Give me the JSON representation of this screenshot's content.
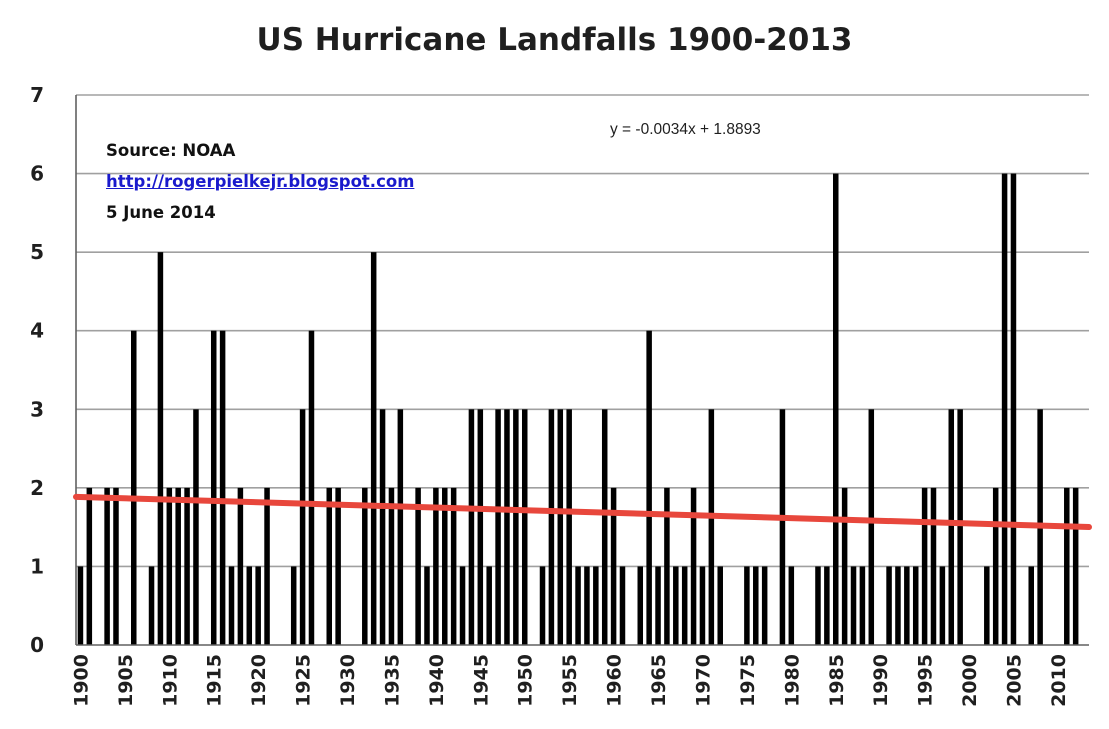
{
  "chart_data": {
    "type": "bar",
    "title": "US Hurricane Landfalls 1900-2013",
    "xlabel": "",
    "ylabel": "",
    "ylim": [
      0,
      7
    ],
    "xlim": [
      1900,
      2013
    ],
    "yticks": [
      "0",
      "1",
      "2",
      "3",
      "4",
      "5",
      "6",
      "7"
    ],
    "xticks": [
      "1900",
      "1905",
      "1910",
      "1915",
      "1920",
      "1925",
      "1930",
      "1935",
      "1940",
      "1945",
      "1950",
      "1955",
      "1960",
      "1965",
      "1970",
      "1975",
      "1980",
      "1985",
      "1990",
      "1995",
      "2000",
      "2005",
      "2010"
    ],
    "grid": true,
    "legend": "none",
    "bar_color": "#000000",
    "trend_color": "#e8473c",
    "categories": [
      1900,
      1901,
      1902,
      1903,
      1904,
      1905,
      1906,
      1907,
      1908,
      1909,
      1910,
      1911,
      1912,
      1913,
      1914,
      1915,
      1916,
      1917,
      1918,
      1919,
      1920,
      1921,
      1922,
      1923,
      1924,
      1925,
      1926,
      1927,
      1928,
      1929,
      1930,
      1931,
      1932,
      1933,
      1934,
      1935,
      1936,
      1937,
      1938,
      1939,
      1940,
      1941,
      1942,
      1943,
      1944,
      1945,
      1946,
      1947,
      1948,
      1949,
      1950,
      1951,
      1952,
      1953,
      1954,
      1955,
      1956,
      1957,
      1958,
      1959,
      1960,
      1961,
      1962,
      1963,
      1964,
      1965,
      1966,
      1967,
      1968,
      1969,
      1970,
      1971,
      1972,
      1973,
      1974,
      1975,
      1976,
      1977,
      1978,
      1979,
      1980,
      1981,
      1982,
      1983,
      1984,
      1985,
      1986,
      1987,
      1988,
      1989,
      1990,
      1991,
      1992,
      1993,
      1994,
      1995,
      1996,
      1997,
      1998,
      1999,
      2000,
      2001,
      2002,
      2003,
      2004,
      2005,
      2006,
      2007,
      2008,
      2009,
      2010,
      2011,
      2012,
      2013
    ],
    "values": [
      1,
      2,
      0,
      2,
      2,
      0,
      4,
      0,
      1,
      5,
      2,
      2,
      2,
      3,
      0,
      4,
      4,
      1,
      2,
      1,
      1,
      2,
      0,
      0,
      1,
      3,
      4,
      0,
      2,
      2,
      0,
      0,
      2,
      5,
      3,
      2,
      3,
      0,
      2,
      1,
      2,
      2,
      2,
      1,
      3,
      3,
      1,
      3,
      3,
      3,
      3,
      0,
      1,
      3,
      3,
      3,
      1,
      1,
      1,
      3,
      2,
      1,
      0,
      1,
      4,
      1,
      2,
      1,
      1,
      2,
      1,
      3,
      1,
      0,
      0,
      1,
      1,
      1,
      0,
      3,
      1,
      0,
      0,
      1,
      1,
      6,
      2,
      1,
      1,
      3,
      0,
      1,
      1,
      1,
      1,
      2,
      2,
      1,
      3,
      3,
      0,
      0,
      1,
      2,
      6,
      6,
      0,
      1,
      3,
      0,
      0,
      2,
      2,
      0
    ],
    "trendline": {
      "label": "y = -0.0034x + 1.8893",
      "slope": -0.0034,
      "intercept": 1.8893
    },
    "annotations": {
      "source": "Source: NOAA",
      "link": "http://rogerpielkejr.blogspot.com",
      "date": "5 June 2014"
    }
  }
}
